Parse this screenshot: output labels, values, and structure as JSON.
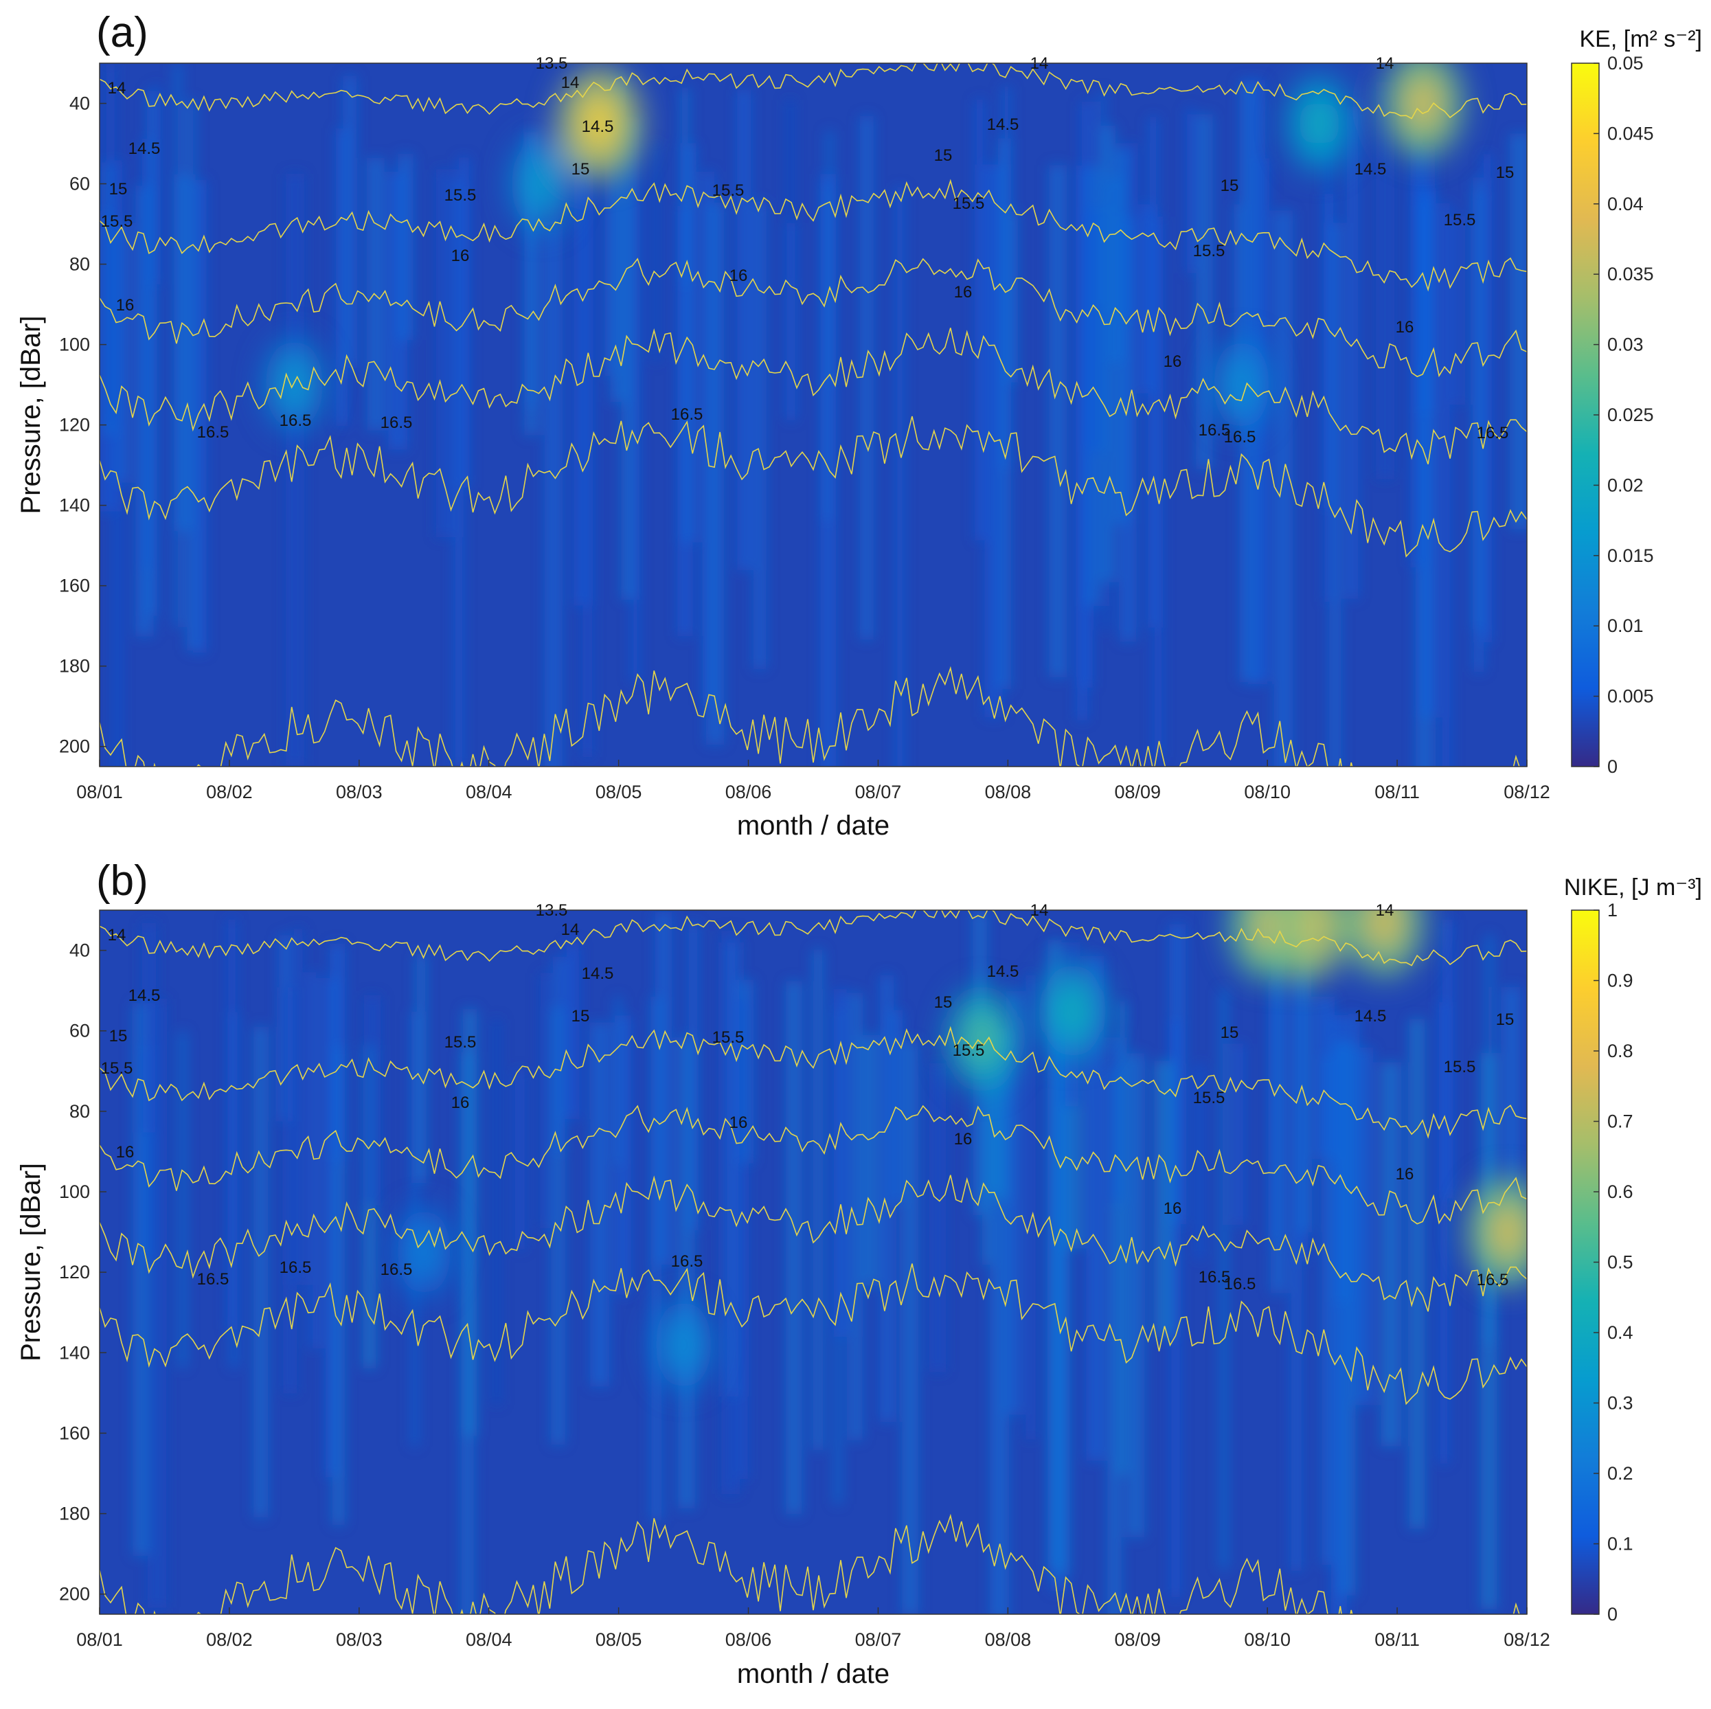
{
  "chart_data": [
    {
      "panel_label": "(a)",
      "type": "heatmap",
      "xlabel": "month / date",
      "ylabel": "Pressure, [dBar]",
      "x_ticks": [
        "08/01",
        "08/02",
        "08/03",
        "08/04",
        "08/05",
        "08/06",
        "08/07",
        "08/08",
        "08/09",
        "08/10",
        "08/11",
        "08/12"
      ],
      "y_ticks": [
        40,
        60,
        80,
        100,
        120,
        140,
        160,
        180,
        200
      ],
      "ylim": [
        30,
        205
      ],
      "colorbar": {
        "label": "KE, [m² s⁻²]",
        "ticks": [
          "0",
          "0.005",
          "0.01",
          "0.015",
          "0.02",
          "0.025",
          "0.03",
          "0.035",
          "0.04",
          "0.045",
          "0.05"
        ],
        "range": [
          0,
          0.05
        ]
      },
      "contours": [
        {
          "level": "14",
          "depth": 36
        },
        {
          "level": "14.5",
          "depth": 72
        },
        {
          "level": "15",
          "depth": 92
        },
        {
          "level": "15.5",
          "depth": 112
        },
        {
          "level": "16",
          "depth": 134
        },
        {
          "level": "16.5",
          "depth": 200
        }
      ],
      "contour_labels": [
        "13.5",
        "14",
        "14",
        "14",
        "14",
        "14.5",
        "14.5",
        "14.5",
        "14.5",
        "15",
        "15",
        "15",
        "15",
        "15",
        "15.5",
        "15.5",
        "15.5",
        "15.5",
        "15.5",
        "15.5",
        "16",
        "16",
        "16",
        "16",
        "16",
        "16",
        "16.5",
        "16.5",
        "16.5",
        "16.5",
        "16.5",
        "16.5",
        "16.5"
      ],
      "hotspots": [
        {
          "day": 4.85,
          "depth": 45,
          "value": 0.045
        },
        {
          "day": 4.4,
          "depth": 60,
          "value": 0.018
        },
        {
          "day": 2.5,
          "depth": 110,
          "value": 0.017
        },
        {
          "day": 10.4,
          "depth": 45,
          "value": 0.022
        },
        {
          "day": 11.2,
          "depth": 40,
          "value": 0.04
        },
        {
          "day": 9.8,
          "depth": 110,
          "value": 0.015
        }
      ]
    },
    {
      "panel_label": "(b)",
      "type": "heatmap",
      "xlabel": "month / date",
      "ylabel": "Pressure, [dBar]",
      "x_ticks": [
        "08/01",
        "08/02",
        "08/03",
        "08/04",
        "08/05",
        "08/06",
        "08/07",
        "08/08",
        "08/09",
        "08/10",
        "08/11",
        "08/12"
      ],
      "y_ticks": [
        40,
        60,
        80,
        100,
        120,
        140,
        160,
        180,
        200
      ],
      "ylim": [
        30,
        205
      ],
      "colorbar": {
        "label": "NIKE, [J m⁻³]",
        "ticks": [
          "0",
          "0.1",
          "0.2",
          "0.3",
          "0.4",
          "0.5",
          "0.6",
          "0.7",
          "0.8",
          "0.9",
          "1"
        ],
        "range": [
          0,
          1
        ]
      },
      "contours": [
        {
          "level": "14",
          "depth": 36
        },
        {
          "level": "14.5",
          "depth": 72
        },
        {
          "level": "15",
          "depth": 92
        },
        {
          "level": "15.5",
          "depth": 112
        },
        {
          "level": "16",
          "depth": 134
        },
        {
          "level": "16.5",
          "depth": 200
        }
      ],
      "contour_labels": [
        "13.5",
        "14",
        "14",
        "14",
        "14",
        "14.5",
        "14.5",
        "14.5",
        "14.5",
        "15",
        "15",
        "15",
        "15",
        "15",
        "15.5",
        "15.5",
        "15.5",
        "15.5",
        "15.5",
        "15.5",
        "16",
        "16",
        "16",
        "16",
        "16",
        "16",
        "16.5",
        "16.5",
        "16.5",
        "16.5",
        "16.5",
        "16.5",
        "16.5"
      ],
      "hotspots": [
        {
          "day": 7.8,
          "depth": 62,
          "value": 0.55
        },
        {
          "day": 8.5,
          "depth": 55,
          "value": 0.45
        },
        {
          "day": 10.3,
          "depth": 34,
          "value": 0.85
        },
        {
          "day": 10.0,
          "depth": 34,
          "value": 0.75
        },
        {
          "day": 10.9,
          "depth": 33,
          "value": 0.8
        },
        {
          "day": 11.85,
          "depth": 110,
          "value": 0.8
        },
        {
          "day": 5.5,
          "depth": 138,
          "value": 0.3
        },
        {
          "day": 3.5,
          "depth": 115,
          "value": 0.25
        }
      ]
    }
  ]
}
